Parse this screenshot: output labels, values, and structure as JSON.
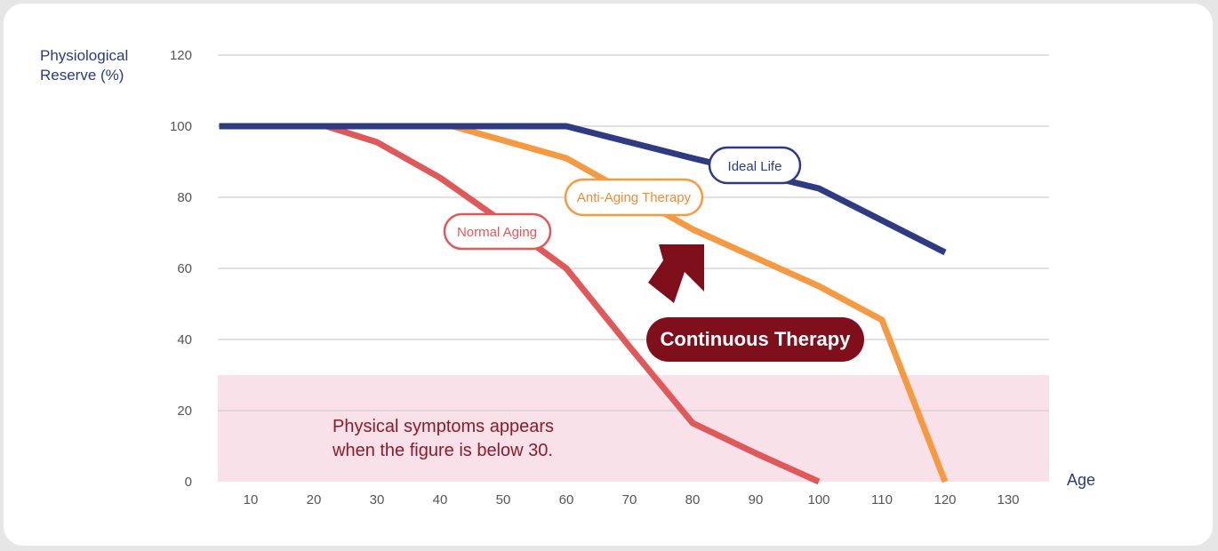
{
  "chart_data": {
    "type": "line",
    "ylabel": "Physiological\nReserve (%)",
    "xlabel": "Age",
    "ylim": [
      0,
      120
    ],
    "xlim": [
      5,
      136
    ],
    "yticks": [
      0,
      20,
      40,
      60,
      80,
      100,
      120
    ],
    "xticks": [
      10,
      20,
      30,
      40,
      50,
      60,
      70,
      80,
      90,
      100,
      110,
      120,
      130
    ],
    "grid": true,
    "series": [
      {
        "name": "Ideal Life",
        "color": "#2e3a82",
        "points": [
          [
            5,
            100
          ],
          [
            60,
            100
          ],
          [
            80,
            91
          ],
          [
            100,
            82.5
          ],
          [
            120,
            64.5
          ]
        ]
      },
      {
        "name": "Anti-Aging Therapy",
        "color": "#f59a43",
        "points": [
          [
            5,
            100
          ],
          [
            42,
            100
          ],
          [
            60,
            91
          ],
          [
            80,
            71
          ],
          [
            100,
            55
          ],
          [
            110,
            45.5
          ],
          [
            120,
            0
          ]
        ]
      },
      {
        "name": "Normal Aging",
        "color": "#e0595a",
        "points": [
          [
            5,
            100
          ],
          [
            22,
            100
          ],
          [
            30,
            95.5
          ],
          [
            40,
            85.5
          ],
          [
            50,
            73
          ],
          [
            60,
            60
          ],
          [
            70,
            38
          ],
          [
            80,
            16.5
          ],
          [
            90,
            8
          ],
          [
            100,
            0
          ]
        ]
      }
    ],
    "region": {
      "y_max": 30,
      "color": "#f9e1ea"
    },
    "annotations": {
      "therapy_label": "Continuous Therapy",
      "note": "Physical symptoms appears\nwhen the figure is below 30."
    },
    "colors": {
      "axis_text": "#555555",
      "title_text": "#2b3a7a",
      "therapy_bg": "#7e0f1b",
      "note_text": "#8b1a2a"
    }
  }
}
